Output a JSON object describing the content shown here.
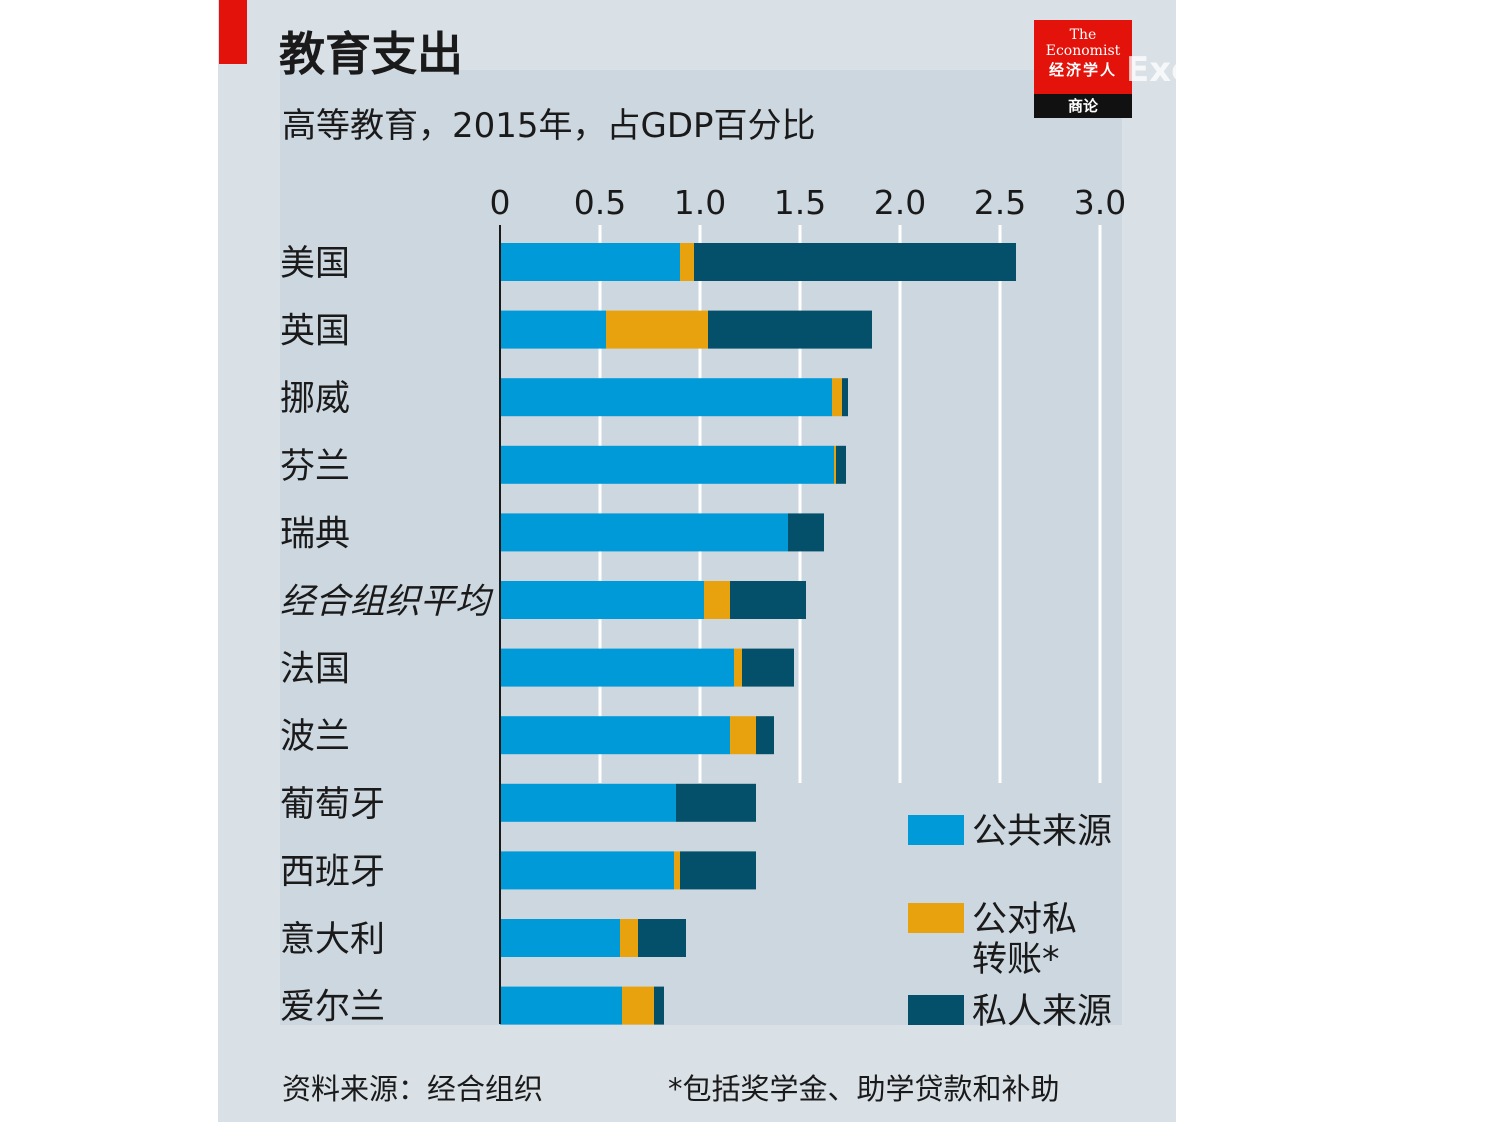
{
  "header": {
    "title": "教育支出",
    "subtitle": "高等教育，2015年，占GDP百分比"
  },
  "logo": {
    "line1": "The",
    "line2": "Economist",
    "line3": "经济学人",
    "line4": "商论"
  },
  "watermark": "Excel和PowerBI爱",
  "footer": {
    "source": "资料来源：经合组织",
    "footnote": "*包括奖学金、助学贷款和补助"
  },
  "chart_data": {
    "type": "bar",
    "orientation": "horizontal",
    "stacked": true,
    "title": "教育支出",
    "subtitle": "高等教育，2015年，占GDP百分比",
    "xlim": [
      0,
      3.0
    ],
    "ticks": [
      "0",
      "0.5",
      "1.0",
      "1.5",
      "2.0",
      "2.5",
      "3.0"
    ],
    "tick_values": [
      0,
      0.5,
      1.0,
      1.5,
      2.0,
      2.5,
      3.0
    ],
    "grid": true,
    "legend_position": "bottom-right",
    "categories": [
      "美国",
      "英国",
      "挪威",
      "芬兰",
      "瑞典",
      "经合组织平均",
      "法国",
      "波兰",
      "葡萄牙",
      "西班牙",
      "意大利",
      "爱尔兰"
    ],
    "italic_categories": [
      "经合组织平均"
    ],
    "series": [
      {
        "name": "公共来源",
        "color": "#009ad9",
        "values": [
          0.9,
          0.53,
          1.66,
          1.67,
          1.44,
          1.02,
          1.17,
          1.15,
          0.88,
          0.87,
          0.6,
          0.61
        ]
      },
      {
        "name": "公对私转账*",
        "color": "#e8a20e",
        "values": [
          0.07,
          0.51,
          0.05,
          0.01,
          0.0,
          0.13,
          0.04,
          0.13,
          0.0,
          0.03,
          0.09,
          0.16
        ]
      },
      {
        "name": "私人来源",
        "color": "#044f6a",
        "values": [
          1.61,
          0.82,
          0.03,
          0.05,
          0.18,
          0.38,
          0.26,
          0.09,
          0.4,
          0.38,
          0.24,
          0.05
        ]
      }
    ],
    "legend_labels": [
      [
        "公共来源"
      ],
      [
        "公对私",
        "转账*"
      ],
      [
        "私人来源"
      ]
    ]
  }
}
